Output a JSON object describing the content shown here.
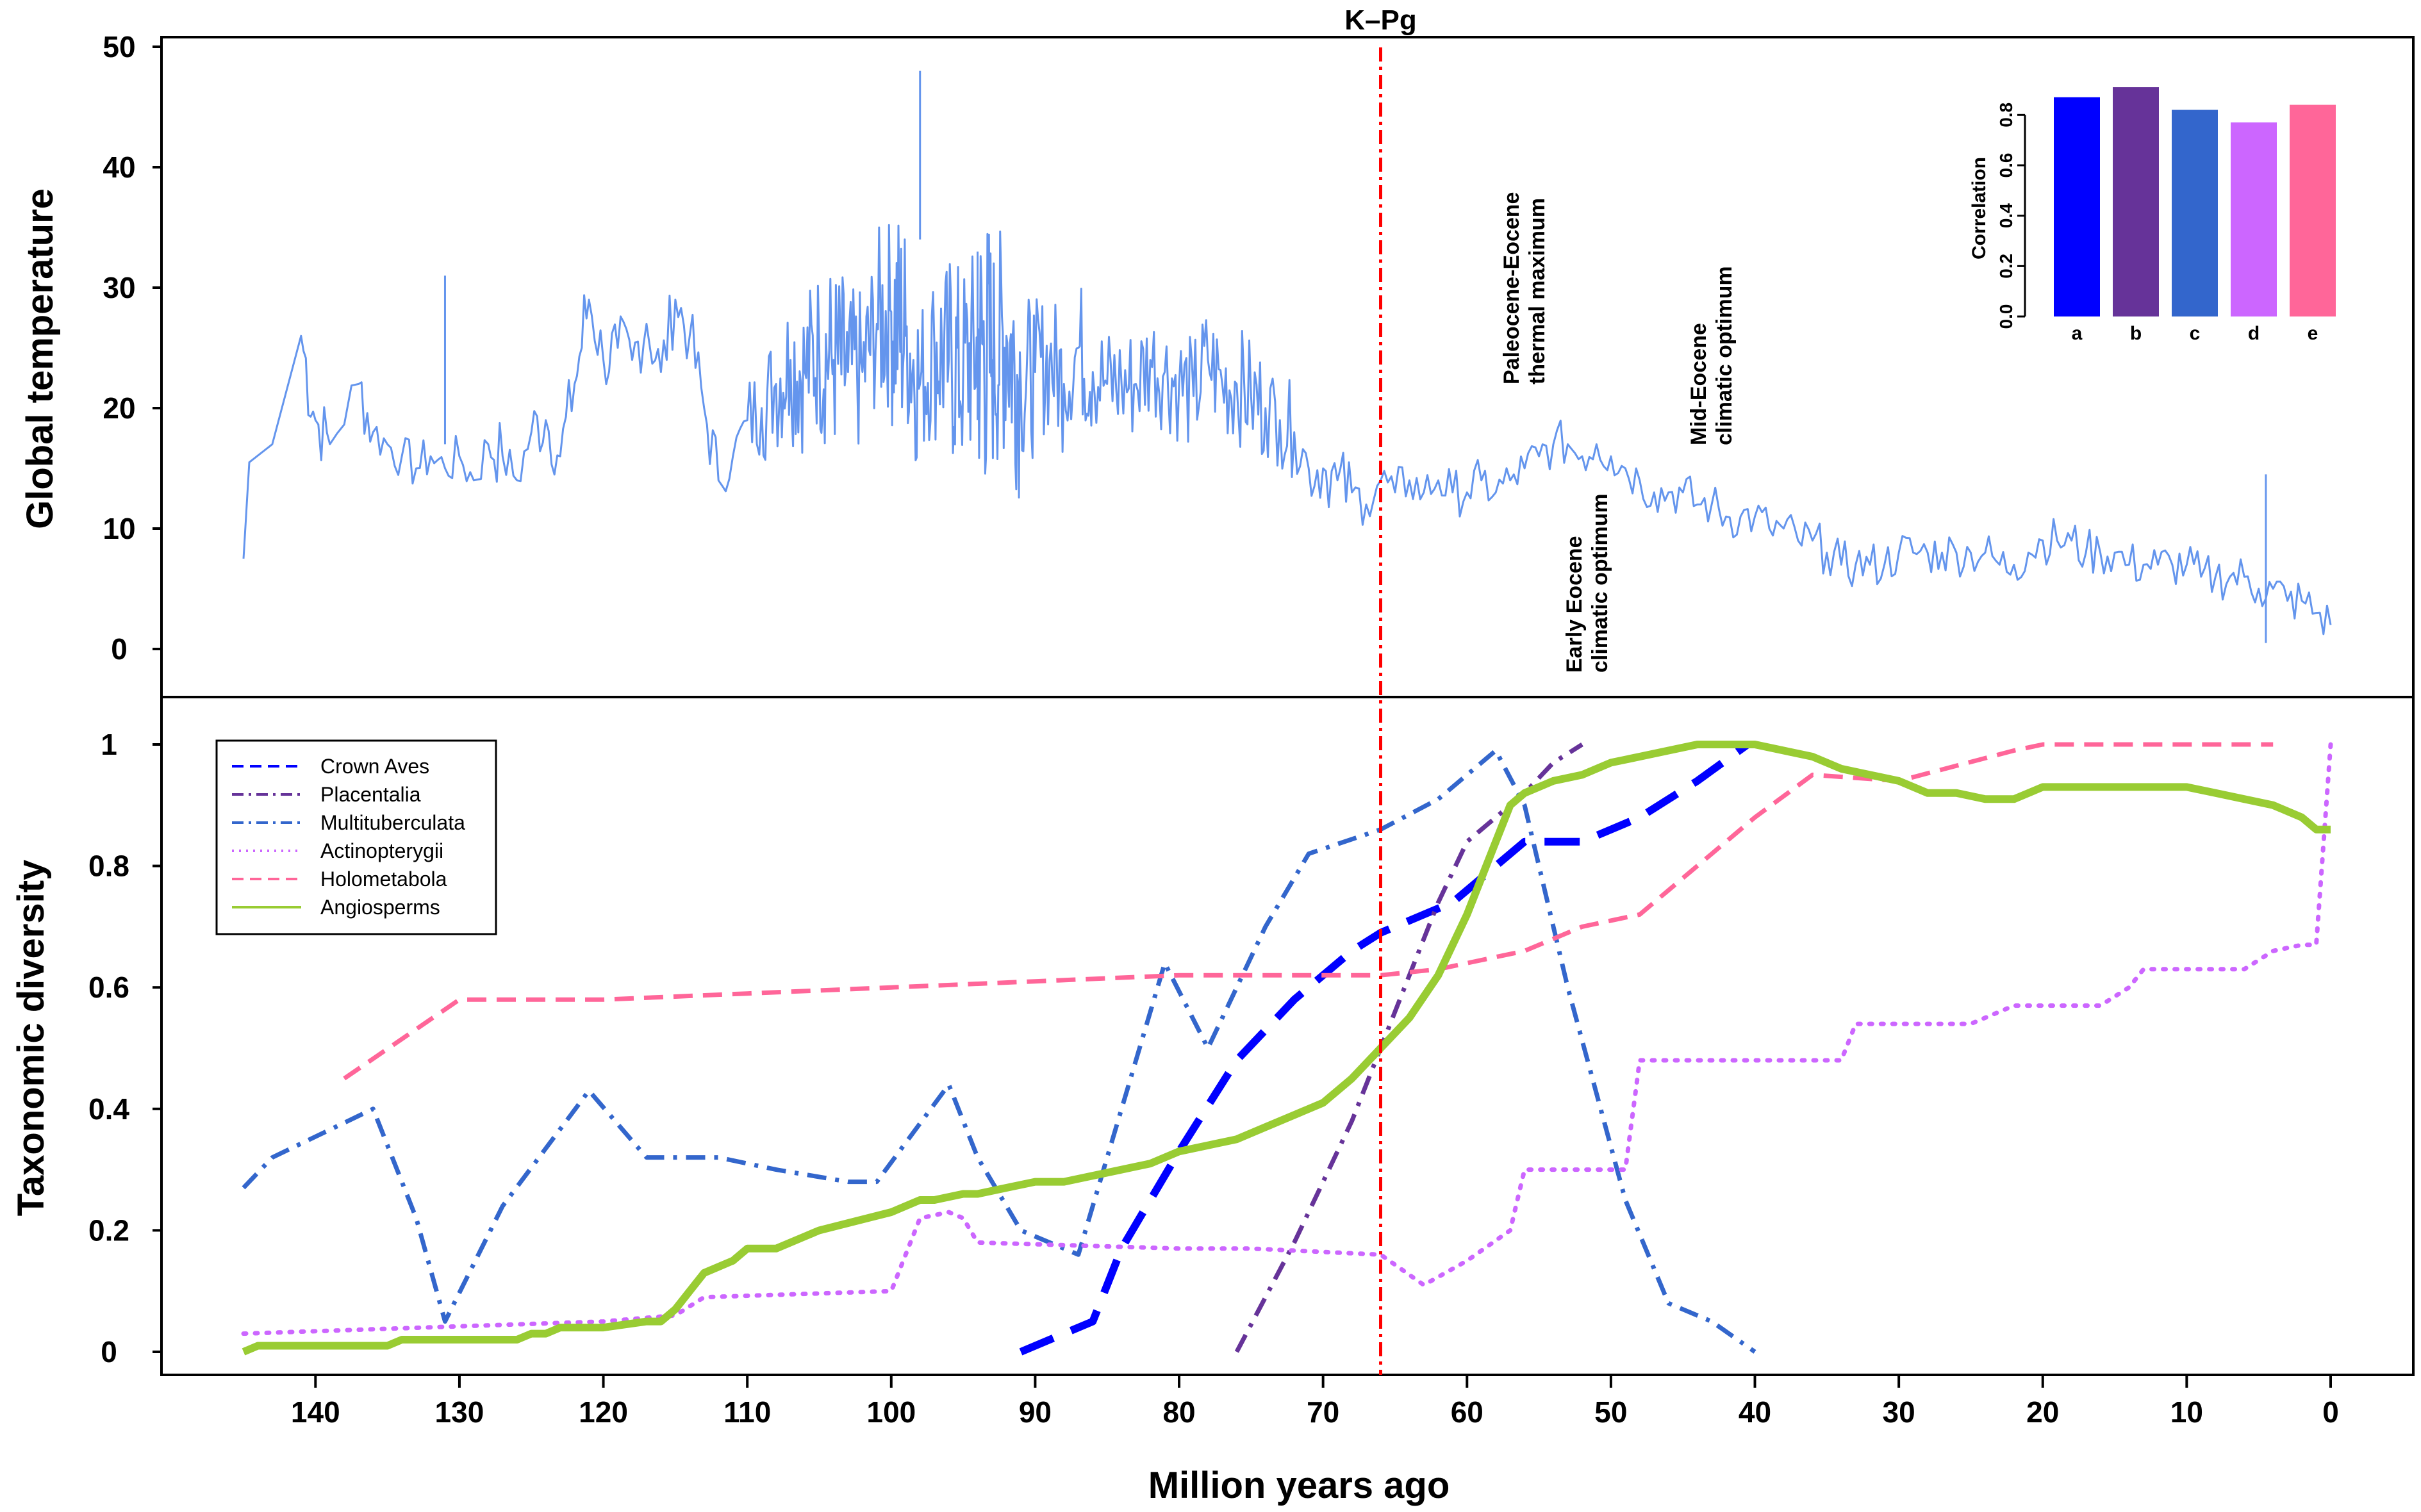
{
  "figure": {
    "xlabel": "Million years ago",
    "kpg_label": "K–Pg",
    "kpg_x": 66
  },
  "chart_data": [
    {
      "type": "line",
      "ylabel": "Global temperature",
      "xlim": [
        146,
        0
      ],
      "xaxis_reversed": true,
      "ylim": [
        -4,
        50
      ],
      "yticks": [
        0,
        10,
        20,
        30,
        40,
        50
      ],
      "color": "#6495ED",
      "series": [
        {
          "values_note_free": true,
          "x": [
            145,
            144.6,
            143,
            141,
            140,
            139,
            137,
            136,
            135,
            134,
            133,
            132,
            131,
            130,
            129,
            128,
            127,
            126,
            125,
            124,
            123,
            122,
            121,
            120,
            119,
            118,
            117,
            116,
            115,
            114,
            113,
            112,
            111,
            110,
            109,
            108,
            107,
            106,
            105,
            104,
            103,
            102,
            101,
            100,
            99,
            98,
            97,
            96,
            95,
            94,
            93,
            92,
            91,
            90,
            89,
            88,
            87,
            86,
            85,
            84,
            83,
            82,
            81,
            80,
            79,
            78,
            77,
            76,
            75,
            74,
            73,
            72,
            71,
            70,
            69,
            68,
            67,
            66,
            65,
            64,
            63,
            62,
            61,
            60,
            59,
            58,
            57,
            56,
            55,
            54,
            53,
            52,
            51,
            50,
            49,
            48,
            47,
            46,
            45,
            44,
            43,
            42,
            41,
            40,
            39,
            38,
            37,
            36,
            35,
            34,
            33,
            32,
            31,
            30,
            29,
            28,
            27,
            26,
            25,
            24,
            23,
            22,
            21,
            20,
            19,
            18,
            17,
            16,
            15,
            14,
            13,
            12,
            11,
            10,
            9,
            8,
            7,
            6,
            5,
            4,
            3,
            2,
            1,
            0
          ],
          "y": [
            7.5,
            15.5,
            17,
            26,
            19,
            17,
            22,
            18,
            17,
            16,
            15,
            16,
            15,
            16,
            14,
            17,
            16,
            14,
            18,
            19,
            16,
            22,
            29,
            24,
            25,
            24,
            27,
            23,
            29,
            26,
            20,
            14,
            16,
            19,
            20,
            22,
            24,
            23,
            25,
            24,
            23,
            23,
            27,
            28,
            26,
            22,
            25,
            24,
            23,
            25,
            24,
            26,
            22,
            23,
            24,
            22,
            25,
            23,
            22,
            22,
            22,
            24,
            23,
            22,
            21,
            24,
            22,
            22,
            21,
            20,
            19,
            18,
            15,
            15,
            14,
            13,
            12,
            14,
            13,
            14,
            13,
            14,
            13,
            13,
            14,
            13,
            14,
            15,
            16,
            17,
            17,
            16,
            17,
            16,
            15,
            14,
            13,
            13,
            13,
            12,
            12,
            11,
            11,
            11,
            10,
            10,
            9,
            9,
            8,
            7,
            7,
            7,
            7,
            8,
            8,
            8,
            8,
            8,
            8,
            8,
            7,
            7,
            8,
            9,
            9,
            9,
            8,
            8,
            8,
            7,
            7,
            7,
            7,
            7,
            6,
            6,
            6,
            6,
            5,
            5,
            4,
            4,
            3,
            2
          ],
          "amplitude": [
            0,
            0,
            0,
            4,
            3,
            2,
            3,
            2,
            2,
            2,
            2,
            2,
            2,
            2,
            2,
            3,
            2,
            2,
            3,
            3,
            3,
            4,
            3,
            3,
            3,
            3,
            3,
            3,
            3,
            3,
            3,
            2,
            2,
            4,
            5,
            6,
            7,
            7,
            8,
            8,
            7,
            7,
            8,
            10,
            8,
            7,
            8,
            9,
            9,
            12,
            10,
            10,
            7,
            6,
            6,
            5,
            6,
            5,
            5,
            5,
            5,
            5,
            5,
            5,
            5,
            5,
            5,
            5,
            5,
            4,
            4,
            3,
            3,
            3,
            3,
            2,
            2,
            2,
            2,
            2,
            2,
            2,
            2,
            2,
            2,
            2,
            2,
            2,
            2,
            2,
            2,
            2,
            2,
            2,
            2,
            2,
            2,
            2,
            2,
            2,
            2,
            2,
            2,
            2,
            2,
            2,
            2,
            2,
            2,
            2,
            2,
            2,
            2,
            2,
            2,
            2,
            2,
            2,
            2,
            2,
            2,
            2,
            2,
            2,
            2,
            2,
            2,
            2,
            2,
            2,
            2,
            2,
            2,
            2,
            2,
            2,
            2,
            2,
            2,
            2,
            2,
            2,
            2,
            2
          ]
        }
      ],
      "annotations": [
        {
          "text_lines": [
            "Paleocene-Eocene",
            "thermal maximum"
          ],
          "x": 55,
          "y": 22
        },
        {
          "text_lines": [
            "Early Eocene",
            "climatic optimum"
          ],
          "x": 51,
          "y": -2
        },
        {
          "text_lines": [
            "Mid-Eocene",
            "climatic optimum"
          ],
          "x": 42,
          "y": 17
        }
      ]
    },
    {
      "type": "bar",
      "ylabel": "Correlation",
      "categories": [
        "a",
        "b",
        "c",
        "d",
        "e"
      ],
      "values": [
        0.87,
        0.91,
        0.82,
        0.77,
        0.84
      ],
      "colors": [
        "#0000FF",
        "#663399",
        "#3366CC",
        "#CC66FF",
        "#FF6699"
      ],
      "ylim": [
        0,
        0.9
      ],
      "yticks": [
        "0.0",
        "0.2",
        "0.4",
        "0.6",
        "0.8"
      ],
      "placement": "inset top-right"
    },
    {
      "type": "line",
      "ylabel": "Taxonomic diversity",
      "xlim": [
        146,
        0
      ],
      "xaxis_reversed": true,
      "ylim": [
        0,
        1.05
      ],
      "yticks": [
        "0",
        "0.2",
        "0.4",
        "0.6",
        "0.8",
        "1"
      ],
      "xticks": [
        140,
        130,
        120,
        110,
        100,
        90,
        80,
        70,
        60,
        50,
        40,
        30,
        20,
        10,
        0
      ],
      "legend": {
        "placement": "top-left"
      },
      "series": [
        {
          "name": "Crown Aves",
          "color": "#0000FF",
          "style": "dashed",
          "width": "thick",
          "x": [
            91,
            86,
            84,
            80,
            76,
            72,
            70,
            68,
            66,
            63,
            61,
            58,
            56,
            52,
            48,
            44,
            40.5
          ],
          "y": [
            0.0,
            0.05,
            0.17,
            0.33,
            0.48,
            0.58,
            0.62,
            0.66,
            0.69,
            0.72,
            0.74,
            0.8,
            0.84,
            0.84,
            0.88,
            0.94,
            1.0
          ]
        },
        {
          "name": "Placentalia",
          "color": "#663399",
          "style": "dashdot",
          "width": "medium",
          "x": [
            76,
            72,
            70,
            68,
            66,
            64,
            62,
            60,
            58,
            56,
            54,
            52
          ],
          "y": [
            0.0,
            0.18,
            0.28,
            0.38,
            0.5,
            0.62,
            0.74,
            0.84,
            0.88,
            0.92,
            0.97,
            1.0
          ]
        },
        {
          "name": "Multituberculata",
          "color": "#3366CC",
          "style": "dashdot",
          "width": "medium",
          "x": [
            145,
            143,
            136,
            133,
            131,
            127,
            121,
            117,
            112,
            108,
            103,
            101,
            96,
            94,
            91,
            87,
            84,
            81,
            78,
            74,
            71,
            66,
            62,
            58,
            56,
            53,
            49,
            46,
            43,
            40
          ],
          "y": [
            0.27,
            0.32,
            0.4,
            0.22,
            0.05,
            0.24,
            0.43,
            0.32,
            0.32,
            0.3,
            0.28,
            0.28,
            0.44,
            0.32,
            0.2,
            0.16,
            0.4,
            0.64,
            0.5,
            0.7,
            0.82,
            0.86,
            0.91,
            0.99,
            0.9,
            0.6,
            0.25,
            0.08,
            0.05,
            0.0
          ],
          "breaks": [
            86
          ]
        },
        {
          "name": "Actinopterygii",
          "color": "#CC66FF",
          "style": "dotted",
          "width": "medium",
          "x": [
            145,
            120,
            115,
            113,
            100,
            98,
            96,
            95,
            94,
            80,
            75,
            66,
            63,
            60,
            57,
            56,
            52,
            49,
            48,
            42,
            40,
            34,
            33,
            30,
            25,
            22,
            20,
            16,
            14,
            13,
            10,
            6,
            4,
            2,
            1,
            0
          ],
          "y": [
            0.03,
            0.05,
            0.06,
            0.09,
            0.1,
            0.22,
            0.23,
            0.22,
            0.18,
            0.17,
            0.17,
            0.16,
            0.11,
            0.15,
            0.2,
            0.3,
            0.3,
            0.3,
            0.48,
            0.48,
            0.48,
            0.48,
            0.54,
            0.54,
            0.54,
            0.57,
            0.57,
            0.57,
            0.6,
            0.63,
            0.63,
            0.63,
            0.66,
            0.67,
            0.67,
            1.0
          ]
        },
        {
          "name": "Holometabola",
          "color": "#FF6699",
          "style": "dashed",
          "width": "medium",
          "x": [
            138,
            130,
            120,
            110,
            100,
            90,
            80,
            72,
            66,
            62,
            56,
            52,
            48,
            44,
            40,
            36,
            30,
            22,
            20,
            10,
            4
          ],
          "y": [
            0.45,
            0.58,
            0.58,
            0.59,
            0.6,
            0.61,
            0.62,
            0.62,
            0.62,
            0.63,
            0.66,
            0.7,
            0.72,
            0.8,
            0.88,
            0.95,
            0.94,
            0.99,
            1.0,
            1.0,
            1.0
          ]
        },
        {
          "name": "Angiosperms",
          "color": "#99CC33",
          "style": "solid",
          "width": "thick",
          "x": [
            145,
            144,
            140,
            135,
            134,
            130,
            126,
            125,
            124,
            123,
            122,
            120,
            117,
            116,
            115,
            114,
            113,
            112,
            111,
            110,
            108,
            106,
            105,
            100,
            98,
            97,
            95,
            94,
            92,
            90,
            88,
            86,
            84,
            82,
            80,
            78,
            76,
            74,
            72,
            70,
            68,
            66,
            64,
            62,
            60,
            58,
            57,
            56,
            54,
            52,
            50,
            48,
            46,
            44,
            42,
            40,
            38,
            36,
            34,
            30,
            28,
            26,
            24,
            22,
            20,
            16,
            12,
            10,
            8,
            6,
            4,
            2,
            1,
            0
          ],
          "y": [
            0.0,
            0.01,
            0.01,
            0.01,
            0.02,
            0.02,
            0.02,
            0.03,
            0.03,
            0.04,
            0.04,
            0.04,
            0.05,
            0.05,
            0.07,
            0.1,
            0.13,
            0.14,
            0.15,
            0.17,
            0.17,
            0.19,
            0.2,
            0.23,
            0.25,
            0.25,
            0.26,
            0.26,
            0.27,
            0.28,
            0.28,
            0.29,
            0.3,
            0.31,
            0.33,
            0.34,
            0.35,
            0.37,
            0.39,
            0.41,
            0.45,
            0.5,
            0.55,
            0.62,
            0.72,
            0.84,
            0.9,
            0.92,
            0.94,
            0.95,
            0.97,
            0.98,
            0.99,
            1.0,
            1.0,
            1.0,
            0.99,
            0.98,
            0.96,
            0.94,
            0.92,
            0.92,
            0.91,
            0.91,
            0.93,
            0.93,
            0.93,
            0.93,
            0.92,
            0.91,
            0.9,
            0.88,
            0.86,
            0.86
          ]
        }
      ]
    }
  ]
}
